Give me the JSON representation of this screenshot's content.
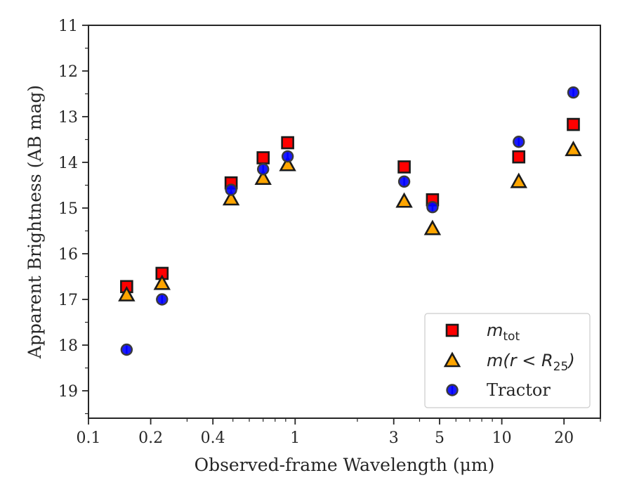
{
  "chart_data": {
    "type": "scatter",
    "xlabel": "Observed-frame Wavelength (μm)",
    "ylabel": "Apparent Brightness (AB mag)",
    "x_scale": "log",
    "xlim": [
      0.1,
      30
    ],
    "ylim": [
      19.6,
      11
    ],
    "y_inverted": true,
    "x_ticks": [
      0.1,
      0.2,
      0.4,
      1,
      3,
      5,
      10,
      20
    ],
    "x_tick_labels": [
      "0.1",
      "0.2",
      "0.4",
      "1",
      "3",
      "5",
      "10",
      "20"
    ],
    "y_ticks": [
      11,
      12,
      13,
      14,
      15,
      16,
      17,
      18,
      19
    ],
    "y_tick_labels": [
      "11",
      "12",
      "13",
      "14",
      "15",
      "16",
      "17",
      "18",
      "19"
    ],
    "grid": false,
    "legend": {
      "position": "lower-right",
      "entries": [
        {
          "label_main": "m",
          "label_sub": "tot",
          "label_rest": ""
        },
        {
          "label_main": "m",
          "label_sub": "",
          "label_rest": "(r < R",
          "label_sub2": "25",
          "label_close": ")"
        },
        {
          "label_main": "",
          "label_sub": "",
          "label_rest": "Tractor"
        }
      ]
    },
    "series": [
      {
        "marker": "square",
        "color": "#ff0000",
        "edge": "#1a1a1a",
        "x": [
          0.153,
          0.227,
          0.49,
          0.7,
          0.92,
          3.37,
          4.62,
          12.08,
          22.19
        ],
        "y": [
          16.72,
          16.43,
          14.45,
          13.9,
          13.57,
          14.1,
          14.82,
          13.88,
          13.17
        ]
      },
      {
        "marker": "triangle",
        "color": "#ffa500",
        "edge": "#1a1a1a",
        "x": [
          0.153,
          0.227,
          0.49,
          0.7,
          0.92,
          3.37,
          4.62,
          12.08,
          22.19
        ],
        "y": [
          16.9,
          16.65,
          14.8,
          14.35,
          14.05,
          14.85,
          15.45,
          14.42,
          13.72
        ]
      },
      {
        "marker": "circle",
        "color": "#0000ff",
        "edge": "#3a3a3a",
        "x": [
          0.153,
          0.227,
          0.49,
          0.7,
          0.92,
          3.37,
          4.62,
          12.08,
          22.19
        ],
        "y": [
          18.1,
          17.0,
          14.6,
          14.15,
          13.87,
          14.42,
          14.98,
          13.55,
          12.47
        ]
      }
    ]
  }
}
